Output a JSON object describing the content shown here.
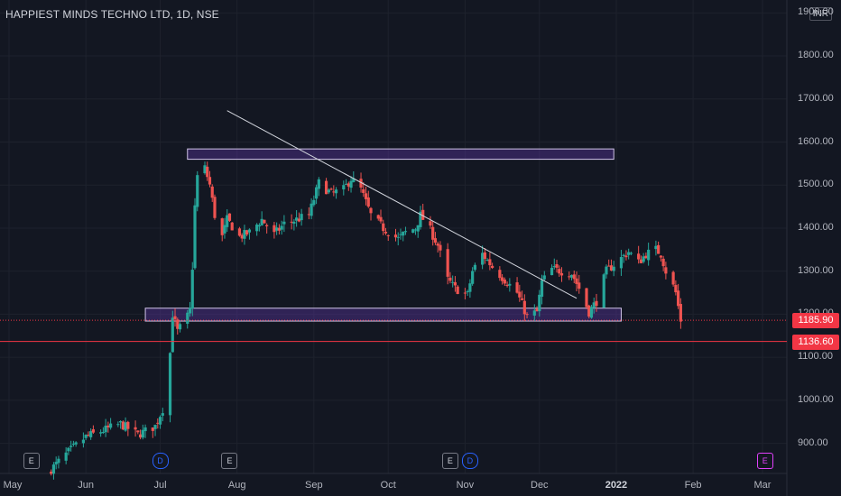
{
  "header": {
    "title": "HAPPIEST MINDS TECHNO LTD, 1D, NSE",
    "currency": "INR"
  },
  "price_tags": {
    "last": "1185.90",
    "line": "1136.60"
  },
  "colors": {
    "up": "#26a69a",
    "down": "#ef5350",
    "background": "#131722",
    "zone": "#d1c4e9",
    "red_line": "#f23645"
  },
  "events": [
    {
      "label": "E",
      "kind": "earnings",
      "date": "2021-05-10"
    },
    {
      "label": "D",
      "kind": "dividend",
      "date": "2021-07-01"
    },
    {
      "label": "E",
      "kind": "earnings",
      "date": "2021-07-29"
    },
    {
      "label": "E",
      "kind": "earnings",
      "date": "2021-10-26"
    },
    {
      "label": "D",
      "kind": "dividend",
      "date": "2021-11-03"
    },
    {
      "label": "E",
      "kind": "upcoming-earnings",
      "date": "2022-03-02"
    }
  ],
  "chart_data": {
    "type": "candlestick",
    "title": "HAPPIEST MINDS TECHNO LTD, 1D, NSE",
    "ylim": [
      830,
      1930
    ],
    "y_ticks": [
      900,
      1000,
      1100,
      1200,
      1300,
      1400,
      1500,
      1600,
      1700,
      1800,
      1900
    ],
    "y_tick_labels": [
      "900.00",
      "1000.00",
      "1100.00",
      "1200.00",
      "1300.00",
      "1400.00",
      "1500.00",
      "1600.00",
      "1700.00",
      "1800.00",
      "1900.00"
    ],
    "x_ticks": [
      {
        "label": "May",
        "date": "2021-05-01"
      },
      {
        "label": "Jun",
        "date": "2021-06-01"
      },
      {
        "label": "Jul",
        "date": "2021-07-01"
      },
      {
        "label": "Aug",
        "date": "2021-08-01"
      },
      {
        "label": "Sep",
        "date": "2021-09-01"
      },
      {
        "label": "Oct",
        "date": "2021-10-01"
      },
      {
        "label": "Nov",
        "date": "2021-11-01"
      },
      {
        "label": "Dec",
        "date": "2021-12-01"
      },
      {
        "label": "2022",
        "date": "2022-01-01",
        "bold": true
      },
      {
        "label": "Feb",
        "date": "2022-02-01"
      },
      {
        "label": "Mar",
        "date": "2022-03-01"
      }
    ],
    "x_range": [
      "2021-05-01",
      "2022-03-01"
    ],
    "last_price": 1185.9,
    "horizontal_line": 1136.6,
    "zones": [
      {
        "from": "2021-07-12",
        "to": "2021-12-31",
        "low": 1560,
        "high": 1584
      },
      {
        "from": "2021-06-25",
        "to": "2022-01-03",
        "low": 1184,
        "high": 1214
      }
    ],
    "trendline": {
      "from": [
        "2021-07-28",
        1673
      ],
      "to": [
        "2021-12-16",
        1237
      ]
    },
    "anchors": [
      [
        "2021-05-18",
        840
      ],
      [
        "2021-05-25",
        880
      ],
      [
        "2021-06-01",
        915
      ],
      [
        "2021-06-08",
        930
      ],
      [
        "2021-06-15",
        945
      ],
      [
        "2021-06-22",
        920
      ],
      [
        "2021-06-29",
        940
      ],
      [
        "2021-07-02",
        980
      ],
      [
        "2021-07-05",
        1110
      ],
      [
        "2021-07-06",
        1200
      ],
      [
        "2021-07-08",
        1160
      ],
      [
        "2021-07-12",
        1195
      ],
      [
        "2021-07-13",
        1210
      ],
      [
        "2021-07-14",
        1310
      ],
      [
        "2021-07-15",
        1450
      ],
      [
        "2021-07-16",
        1520
      ],
      [
        "2021-07-19",
        1540
      ],
      [
        "2021-07-21",
        1500
      ],
      [
        "2021-07-23",
        1430
      ],
      [
        "2021-07-26",
        1380
      ],
      [
        "2021-07-28",
        1420
      ],
      [
        "2021-08-02",
        1380
      ],
      [
        "2021-08-06",
        1390
      ],
      [
        "2021-08-11",
        1420
      ],
      [
        "2021-08-16",
        1385
      ],
      [
        "2021-08-20",
        1410
      ],
      [
        "2021-08-25",
        1420
      ],
      [
        "2021-08-30",
        1430
      ],
      [
        "2021-09-03",
        1505
      ],
      [
        "2021-09-08",
        1480
      ],
      [
        "2021-09-13",
        1490
      ],
      [
        "2021-09-16",
        1515
      ],
      [
        "2021-09-20",
        1490
      ],
      [
        "2021-09-24",
        1430
      ],
      [
        "2021-09-29",
        1400
      ],
      [
        "2021-10-05",
        1375
      ],
      [
        "2021-10-08",
        1390
      ],
      [
        "2021-10-12",
        1400
      ],
      [
        "2021-10-14",
        1430
      ],
      [
        "2021-10-18",
        1395
      ],
      [
        "2021-10-21",
        1360
      ],
      [
        "2021-10-25",
        1280
      ],
      [
        "2021-10-28",
        1260
      ],
      [
        "2021-11-02",
        1245
      ],
      [
        "2021-11-04",
        1300
      ],
      [
        "2021-11-08",
        1340
      ],
      [
        "2021-11-12",
        1310
      ],
      [
        "2021-11-17",
        1280
      ],
      [
        "2021-11-22",
        1250
      ],
      [
        "2021-11-26",
        1195
      ],
      [
        "2021-11-30",
        1205
      ],
      [
        "2021-12-02",
        1275
      ],
      [
        "2021-12-06",
        1305
      ],
      [
        "2021-12-10",
        1300
      ],
      [
        "2021-12-14",
        1295
      ],
      [
        "2021-12-17",
        1260
      ],
      [
        "2021-12-21",
        1205
      ],
      [
        "2021-12-24",
        1230
      ],
      [
        "2021-12-28",
        1300
      ],
      [
        "2022-01-03",
        1330
      ],
      [
        "2022-01-06",
        1345
      ],
      [
        "2022-01-10",
        1320
      ],
      [
        "2022-01-13",
        1340
      ],
      [
        "2022-01-17",
        1350
      ],
      [
        "2022-01-19",
        1340
      ],
      [
        "2022-01-21",
        1300
      ],
      [
        "2022-01-24",
        1265
      ],
      [
        "2022-01-25",
        1250
      ],
      [
        "2022-01-27",
        1186
      ]
    ]
  }
}
